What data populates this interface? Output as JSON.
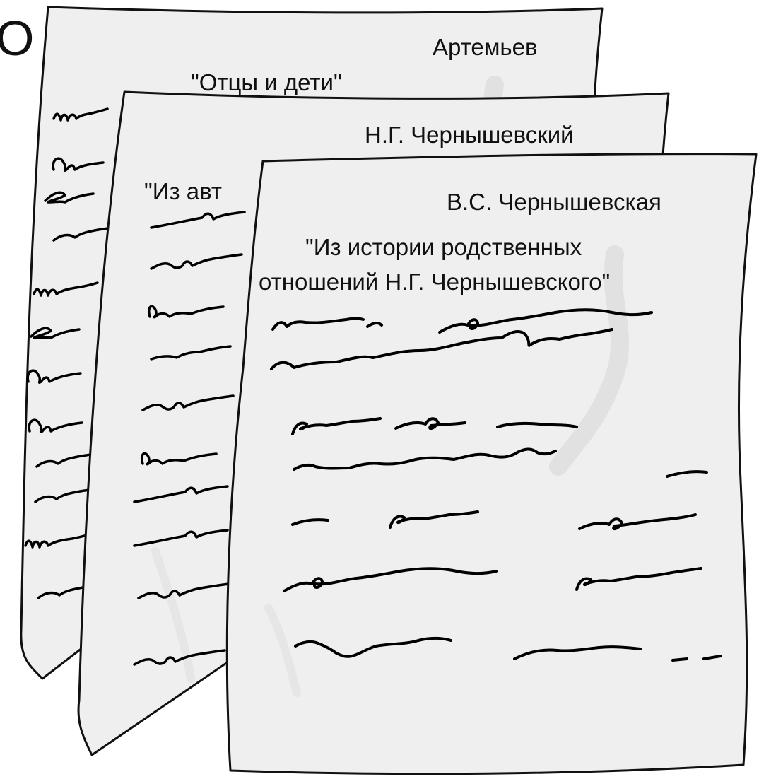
{
  "colors": {
    "paper_fill": "#efefef",
    "outline": "#111111",
    "ink": "#000000",
    "background": "#ffffff"
  },
  "edge_fragment": "О",
  "documents": [
    {
      "author": "Артемьев",
      "title": "\"Отцы и дети\""
    },
    {
      "author": "Н.Г. Чернышевский",
      "title_visible": "\"Из авт"
    },
    {
      "author": "В.С. Чернышевская",
      "title_line1": "\"Из истории родственных",
      "title_line2": "отношений Н.Г. Чернышевского\""
    }
  ]
}
